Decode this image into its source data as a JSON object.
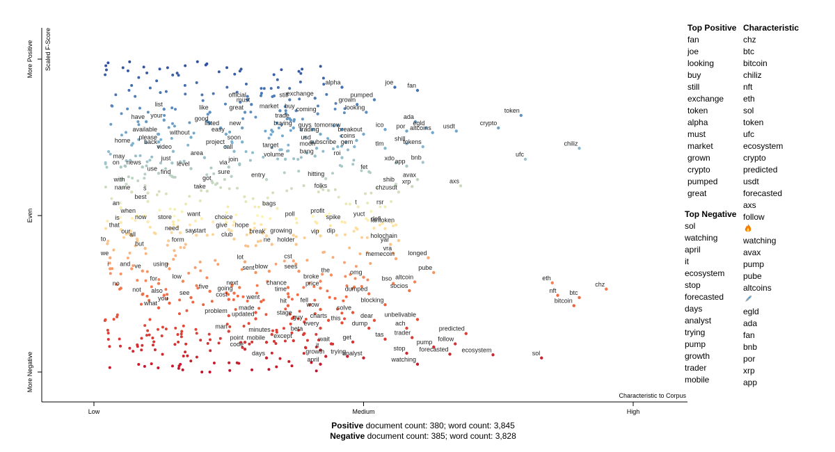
{
  "chart_data": {
    "type": "scatter",
    "y_axis_label": "Scaled F-Score",
    "y_axis_ticks": [
      "More Positive",
      "Even",
      "More Negative"
    ],
    "x_axis_label": "Characteristic to Corpus",
    "x_axis_ticks": [
      "Low",
      "Medium",
      "High"
    ],
    "xlim": [
      0,
      1
    ],
    "ylim": [
      0,
      1
    ],
    "colors": {
      "positive": "#2b4c9c",
      "neutral": "#fff5b4",
      "negative": "#c3112a"
    },
    "points": [
      {
        "term": "alpha",
        "x": 0.46,
        "y": 0.91
      },
      {
        "term": "joe",
        "x": 0.558,
        "y": 0.91
      },
      {
        "term": "fan",
        "x": 0.6,
        "y": 0.9
      },
      {
        "term": "official",
        "x": 0.285,
        "y": 0.87
      },
      {
        "term": "must",
        "x": 0.292,
        "y": 0.855
      },
      {
        "term": "still",
        "x": 0.363,
        "y": 0.87
      },
      {
        "term": "exchange",
        "x": 0.41,
        "y": 0.875
      },
      {
        "term": "grown",
        "x": 0.488,
        "y": 0.855
      },
      {
        "term": "pumped",
        "x": 0.52,
        "y": 0.87
      },
      {
        "term": "list",
        "x": 0.13,
        "y": 0.84
      },
      {
        "term": "like",
        "x": 0.215,
        "y": 0.83
      },
      {
        "term": "great",
        "x": 0.28,
        "y": 0.83
      },
      {
        "term": "market",
        "x": 0.345,
        "y": 0.835
      },
      {
        "term": "buy",
        "x": 0.375,
        "y": 0.835
      },
      {
        "term": "coming",
        "x": 0.415,
        "y": 0.825
      },
      {
        "term": "looking",
        "x": 0.505,
        "y": 0.83
      },
      {
        "term": "token",
        "x": 0.792,
        "y": 0.82
      },
      {
        "term": "have",
        "x": 0.097,
        "y": 0.8
      },
      {
        "term": "your",
        "x": 0.13,
        "y": 0.805
      },
      {
        "term": "good",
        "x": 0.215,
        "y": 0.795
      },
      {
        "term": "trade",
        "x": 0.365,
        "y": 0.805
      },
      {
        "term": "ada",
        "x": 0.596,
        "y": 0.8
      },
      {
        "term": "crypto",
        "x": 0.75,
        "y": 0.78
      },
      {
        "term": "listed",
        "x": 0.235,
        "y": 0.78
      },
      {
        "term": "new",
        "x": 0.275,
        "y": 0.78
      },
      {
        "term": "buying",
        "x": 0.37,
        "y": 0.78
      },
      {
        "term": "guys",
        "x": 0.406,
        "y": 0.775
      },
      {
        "term": "tomorrow",
        "x": 0.46,
        "y": 0.775
      },
      {
        "term": "ico",
        "x": 0.54,
        "y": 0.775
      },
      {
        "term": "egld",
        "x": 0.616,
        "y": 0.78
      },
      {
        "term": "usdt",
        "x": 0.672,
        "y": 0.77
      },
      {
        "term": "por",
        "x": 0.58,
        "y": 0.77
      },
      {
        "term": "altcoins",
        "x": 0.628,
        "y": 0.765
      },
      {
        "term": "available",
        "x": 0.12,
        "y": 0.76
      },
      {
        "term": "easy",
        "x": 0.245,
        "y": 0.76
      },
      {
        "term": "trading",
        "x": 0.42,
        "y": 0.76
      },
      {
        "term": "breakout",
        "x": 0.5,
        "y": 0.76
      },
      {
        "term": "without",
        "x": 0.18,
        "y": 0.75
      },
      {
        "term": "coins",
        "x": 0.487,
        "y": 0.74
      },
      {
        "term": "chiliz",
        "x": 0.9,
        "y": 0.715
      },
      {
        "term": "please",
        "x": 0.12,
        "y": 0.735
      },
      {
        "term": "soon",
        "x": 0.275,
        "y": 0.735
      },
      {
        "term": "usd",
        "x": 0.405,
        "y": 0.735
      },
      {
        "term": "shill",
        "x": 0.58,
        "y": 0.73
      },
      {
        "term": "tokens",
        "x": 0.61,
        "y": 0.72
      },
      {
        "term": "gem",
        "x": 0.483,
        "y": 0.72
      },
      {
        "term": "tlm",
        "x": 0.54,
        "y": 0.715
      },
      {
        "term": "subscribe",
        "x": 0.452,
        "y": 0.72
      },
      {
        "term": "home",
        "x": 0.07,
        "y": 0.725
      },
      {
        "term": "back",
        "x": 0.12,
        "y": 0.72
      },
      {
        "term": "project",
        "x": 0.245,
        "y": 0.72
      },
      {
        "term": "moon",
        "x": 0.413,
        "y": 0.715
      },
      {
        "term": "video",
        "x": 0.147,
        "y": 0.705
      },
      {
        "term": "call",
        "x": 0.26,
        "y": 0.705
      },
      {
        "term": "target",
        "x": 0.345,
        "y": 0.71
      },
      {
        "term": "bang",
        "x": 0.41,
        "y": 0.69
      },
      {
        "term": "roi",
        "x": 0.46,
        "y": 0.685
      },
      {
        "term": "ufc",
        "x": 0.8,
        "y": 0.68
      },
      {
        "term": "area",
        "x": 0.205,
        "y": 0.685
      },
      {
        "term": "may",
        "x": 0.06,
        "y": 0.675
      },
      {
        "term": "volume",
        "x": 0.355,
        "y": 0.68
      },
      {
        "term": "xdo",
        "x": 0.56,
        "y": 0.668
      },
      {
        "term": "bnb",
        "x": 0.61,
        "y": 0.67
      },
      {
        "term": "just",
        "x": 0.145,
        "y": 0.668
      },
      {
        "term": "join",
        "x": 0.27,
        "y": 0.665
      },
      {
        "term": "app",
        "x": 0.58,
        "y": 0.658
      },
      {
        "term": "on",
        "x": 0.05,
        "y": 0.655
      },
      {
        "term": "news",
        "x": 0.09,
        "y": 0.655
      },
      {
        "term": "level",
        "x": 0.18,
        "y": 0.65
      },
      {
        "term": "via",
        "x": 0.25,
        "y": 0.655
      },
      {
        "term": "fet",
        "x": 0.51,
        "y": 0.64
      },
      {
        "term": "use",
        "x": 0.12,
        "y": 0.635
      },
      {
        "term": "find",
        "x": 0.145,
        "y": 0.625
      },
      {
        "term": "sure",
        "x": 0.255,
        "y": 0.625
      },
      {
        "term": "entry",
        "x": 0.32,
        "y": 0.615
      },
      {
        "term": "hitting",
        "x": 0.43,
        "y": 0.618
      },
      {
        "term": "avax",
        "x": 0.6,
        "y": 0.615
      },
      {
        "term": "with",
        "x": 0.06,
        "y": 0.6
      },
      {
        "term": "got",
        "x": 0.22,
        "y": 0.605
      },
      {
        "term": "shib",
        "x": 0.56,
        "y": 0.6
      },
      {
        "term": "xrp",
        "x": 0.59,
        "y": 0.593
      },
      {
        "term": "axs",
        "x": 0.68,
        "y": 0.595
      },
      {
        "term": "name",
        "x": 0.07,
        "y": 0.575
      },
      {
        "term": "take",
        "x": 0.21,
        "y": 0.578
      },
      {
        "term": "folks",
        "x": 0.435,
        "y": 0.58
      },
      {
        "term": "chzusdt",
        "x": 0.565,
        "y": 0.575
      },
      {
        "term": "s",
        "x": 0.1,
        "y": 0.572
      },
      {
        "term": "best",
        "x": 0.1,
        "y": 0.545
      },
      {
        "term": "an",
        "x": 0.05,
        "y": 0.525
      },
      {
        "term": "bags",
        "x": 0.34,
        "y": 0.523
      },
      {
        "term": "rsr",
        "x": 0.54,
        "y": 0.528
      },
      {
        "term": "t",
        "x": 0.49,
        "y": 0.528
      },
      {
        "term": "when",
        "x": 0.08,
        "y": 0.5
      },
      {
        "term": "want",
        "x": 0.2,
        "y": 0.49
      },
      {
        "term": "poll",
        "x": 0.375,
        "y": 0.49
      },
      {
        "term": "profit",
        "x": 0.43,
        "y": 0.5
      },
      {
        "term": "yuct",
        "x": 0.505,
        "y": 0.49
      },
      {
        "term": "is",
        "x": 0.05,
        "y": 0.478
      },
      {
        "term": "now",
        "x": 0.1,
        "y": 0.48
      },
      {
        "term": "store",
        "x": 0.147,
        "y": 0.48
      },
      {
        "term": "choice",
        "x": 0.26,
        "y": 0.48
      },
      {
        "term": "spike",
        "x": 0.46,
        "y": 0.48
      },
      {
        "term": "defi",
        "x": 0.535,
        "y": 0.475
      },
      {
        "term": "fantoken",
        "x": 0.56,
        "y": 0.47
      },
      {
        "term": "that",
        "x": 0.05,
        "y": 0.455
      },
      {
        "term": "give",
        "x": 0.25,
        "y": 0.455
      },
      {
        "term": "hope",
        "x": 0.29,
        "y": 0.455
      },
      {
        "term": "our",
        "x": 0.07,
        "y": 0.435
      },
      {
        "term": "need",
        "x": 0.16,
        "y": 0.445
      },
      {
        "term": "say",
        "x": 0.19,
        "y": 0.437
      },
      {
        "term": "start",
        "x": 0.21,
        "y": 0.437
      },
      {
        "term": "break",
        "x": 0.32,
        "y": 0.435
      },
      {
        "term": "growing",
        "x": 0.37,
        "y": 0.437
      },
      {
        "term": "vip",
        "x": 0.42,
        "y": 0.435
      },
      {
        "term": "dip",
        "x": 0.45,
        "y": 0.437
      },
      {
        "term": "holochain",
        "x": 0.565,
        "y": 0.42
      },
      {
        "term": "all",
        "x": 0.08,
        "y": 0.425
      },
      {
        "term": "club",
        "x": 0.26,
        "y": 0.425
      },
      {
        "term": "to",
        "x": 0.025,
        "y": 0.41
      },
      {
        "term": "form",
        "x": 0.17,
        "y": 0.408
      },
      {
        "term": "ne",
        "x": 0.33,
        "y": 0.408
      },
      {
        "term": "holder",
        "x": 0.375,
        "y": 0.408
      },
      {
        "term": "yar",
        "x": 0.55,
        "y": 0.408
      },
      {
        "term": "but",
        "x": 0.095,
        "y": 0.395
      },
      {
        "term": "vra",
        "x": 0.555,
        "y": 0.38
      },
      {
        "term": "we",
        "x": 0.03,
        "y": 0.365
      },
      {
        "term": "memecoin",
        "x": 0.56,
        "y": 0.362
      },
      {
        "term": "longed",
        "x": 0.62,
        "y": 0.365
      },
      {
        "term": "lot",
        "x": 0.28,
        "y": 0.352
      },
      {
        "term": "cst",
        "x": 0.37,
        "y": 0.355
      },
      {
        "term": "i",
        "x": 0.03,
        "y": 0.33
      },
      {
        "term": "and",
        "x": 0.07,
        "y": 0.33
      },
      {
        "term": "ve",
        "x": 0.09,
        "y": 0.323
      },
      {
        "term": "using",
        "x": 0.14,
        "y": 0.33
      },
      {
        "term": "sent",
        "x": 0.3,
        "y": 0.318
      },
      {
        "term": "blow",
        "x": 0.325,
        "y": 0.322
      },
      {
        "term": "sees",
        "x": 0.38,
        "y": 0.322
      },
      {
        "term": "pube",
        "x": 0.63,
        "y": 0.318
      },
      {
        "term": "the",
        "x": 0.44,
        "y": 0.31
      },
      {
        "term": "omg",
        "x": 0.5,
        "y": 0.303
      },
      {
        "term": "low",
        "x": 0.165,
        "y": 0.29
      },
      {
        "term": "for",
        "x": 0.12,
        "y": 0.283
      },
      {
        "term": "broke",
        "x": 0.42,
        "y": 0.29
      },
      {
        "term": "bso",
        "x": 0.555,
        "y": 0.283
      },
      {
        "term": "altcoin",
        "x": 0.595,
        "y": 0.288
      },
      {
        "term": "eth",
        "x": 0.85,
        "y": 0.285
      },
      {
        "term": "chz",
        "x": 0.95,
        "y": 0.265
      },
      {
        "term": "no",
        "x": 0.05,
        "y": 0.268
      },
      {
        "term": "next",
        "x": 0.27,
        "y": 0.27
      },
      {
        "term": "chance",
        "x": 0.36,
        "y": 0.27
      },
      {
        "term": "price",
        "x": 0.42,
        "y": 0.268
      },
      {
        "term": "socios",
        "x": 0.585,
        "y": 0.26
      },
      {
        "term": "five",
        "x": 0.215,
        "y": 0.258
      },
      {
        "term": "going",
        "x": 0.26,
        "y": 0.252
      },
      {
        "term": "time",
        "x": 0.36,
        "y": 0.25
      },
      {
        "term": "dumped",
        "x": 0.51,
        "y": 0.25
      },
      {
        "term": "nft",
        "x": 0.86,
        "y": 0.245
      },
      {
        "term": "not",
        "x": 0.09,
        "y": 0.248
      },
      {
        "term": "also",
        "x": 0.13,
        "y": 0.245
      },
      {
        "term": "see",
        "x": 0.18,
        "y": 0.238
      },
      {
        "term": "cost",
        "x": 0.25,
        "y": 0.232
      },
      {
        "term": "btc",
        "x": 0.9,
        "y": 0.238
      },
      {
        "term": "you",
        "x": 0.14,
        "y": 0.22
      },
      {
        "term": "went",
        "x": 0.31,
        "y": 0.225
      },
      {
        "term": "hit",
        "x": 0.36,
        "y": 0.212
      },
      {
        "term": "fell",
        "x": 0.4,
        "y": 0.215
      },
      {
        "term": "blocking",
        "x": 0.54,
        "y": 0.215
      },
      {
        "term": "bitcoin",
        "x": 0.89,
        "y": 0.212
      },
      {
        "term": "what",
        "x": 0.12,
        "y": 0.205
      },
      {
        "term": "wow",
        "x": 0.42,
        "y": 0.2
      },
      {
        "term": "solve",
        "x": 0.48,
        "y": 0.19
      },
      {
        "term": "made",
        "x": 0.3,
        "y": 0.19
      },
      {
        "term": "problem",
        "x": 0.25,
        "y": 0.18
      },
      {
        "term": "stage",
        "x": 0.37,
        "y": 0.175
      },
      {
        "term": "updated",
        "x": 0.3,
        "y": 0.17
      },
      {
        "term": "dear",
        "x": 0.52,
        "y": 0.165
      },
      {
        "term": "unbelivable",
        "x": 0.6,
        "y": 0.168
      },
      {
        "term": "guy",
        "x": 0.39,
        "y": 0.16
      },
      {
        "term": "charts",
        "x": 0.435,
        "y": 0.165
      },
      {
        "term": "this",
        "x": 0.46,
        "y": 0.157
      },
      {
        "term": "every",
        "x": 0.42,
        "y": 0.14
      },
      {
        "term": "dump",
        "x": 0.51,
        "y": 0.14
      },
      {
        "term": "ach",
        "x": 0.58,
        "y": 0.14
      },
      {
        "term": "man",
        "x": 0.25,
        "y": 0.13
      },
      {
        "term": "minutes",
        "x": 0.33,
        "y": 0.12
      },
      {
        "term": "beta",
        "x": 0.39,
        "y": 0.123
      },
      {
        "term": "predicted",
        "x": 0.69,
        "y": 0.123
      },
      {
        "term": "trader",
        "x": 0.59,
        "y": 0.11
      },
      {
        "term": "tas",
        "x": 0.54,
        "y": 0.105
      },
      {
        "term": "point",
        "x": 0.28,
        "y": 0.095
      },
      {
        "term": "mobile",
        "x": 0.32,
        "y": 0.095
      },
      {
        "term": "except",
        "x": 0.37,
        "y": 0.1
      },
      {
        "term": "get",
        "x": 0.48,
        "y": 0.096
      },
      {
        "term": "wait",
        "x": 0.44,
        "y": 0.09
      },
      {
        "term": "follow",
        "x": 0.67,
        "y": 0.09
      },
      {
        "term": "pump",
        "x": 0.63,
        "y": 0.08
      },
      {
        "term": "code",
        "x": 0.28,
        "y": 0.073
      },
      {
        "term": "it",
        "x": 0.42,
        "y": 0.07
      },
      {
        "term": "stop",
        "x": 0.58,
        "y": 0.06
      },
      {
        "term": "forecasted",
        "x": 0.66,
        "y": 0.057
      },
      {
        "term": "ecosystem",
        "x": 0.74,
        "y": 0.055
      },
      {
        "term": "sol",
        "x": 0.83,
        "y": 0.045
      },
      {
        "term": "days",
        "x": 0.32,
        "y": 0.045
      },
      {
        "term": "growth",
        "x": 0.43,
        "y": 0.05
      },
      {
        "term": "trying",
        "x": 0.47,
        "y": 0.05
      },
      {
        "term": "analyst",
        "x": 0.5,
        "y": 0.045
      },
      {
        "term": "april",
        "x": 0.42,
        "y": 0.025
      },
      {
        "term": "watching",
        "x": 0.6,
        "y": 0.025
      }
    ]
  },
  "sidebar": {
    "top_positive_header": "Top Positive",
    "top_positive": [
      "fan",
      "joe",
      "looking",
      "buy",
      "still",
      "exchange",
      "token",
      "alpha",
      "must",
      "market",
      "grown",
      "crypto",
      "pumped",
      "great"
    ],
    "top_negative_header": "Top Negative",
    "top_negative": [
      "sol",
      "watching",
      "april",
      "it",
      "ecosystem",
      "stop",
      "forecasted",
      "days",
      "analyst",
      "trying",
      "pump",
      "growth",
      "trader",
      "mobile"
    ],
    "characteristic_header": "Characteristic",
    "characteristic": [
      "chz",
      "btc",
      "bitcoin",
      "chiliz",
      "nft",
      "eth",
      "sol",
      "token",
      "ufc",
      "ecosystem",
      "crypto",
      "predicted",
      "usdt",
      "forecasted",
      "axs",
      "follow",
      "fire-emoji",
      "watching",
      "avax",
      "pump",
      "pube",
      "altcoins",
      "rocket-emoji",
      "egld",
      "ada",
      "fan",
      "bnb",
      "por",
      "xrp",
      "app"
    ]
  },
  "footer": {
    "positive_label": "Positive",
    "positive_text": " document count: 380; word count: 3,845",
    "negative_label": "Negative",
    "negative_text": " document count: 385; word count: 3,828"
  }
}
